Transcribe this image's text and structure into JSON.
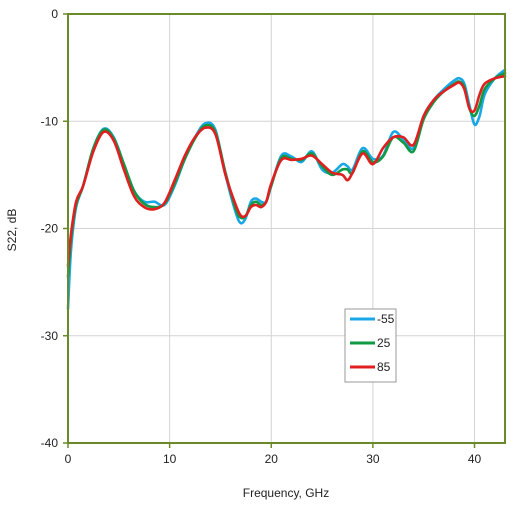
{
  "chart_data": {
    "type": "line",
    "title": "",
    "xlabel": "Frequency, GHz",
    "ylabel": "S22, dB",
    "xlim": [
      0,
      43
    ],
    "ylim": [
      -40,
      0
    ],
    "xticks": [
      0,
      10,
      20,
      30,
      40
    ],
    "yticks": [
      0,
      -10,
      -20,
      -30,
      -40
    ],
    "grid": true,
    "legend_position": "lower-right",
    "colors": {
      "axis": "#6a8a2a",
      "grid": "#d4d4d4"
    },
    "series": [
      {
        "name": "-55",
        "color": "#1aa7e8",
        "x": [
          0,
          0.3,
          0.8,
          1.5,
          2.5,
          3.5,
          4.5,
          5.5,
          6.5,
          7.5,
          8.5,
          9.5,
          10.5,
          11.5,
          12.5,
          13.5,
          14.5,
          15.5,
          16.5,
          17,
          17.5,
          18,
          18.5,
          19,
          19.5,
          20,
          21,
          22,
          23,
          24,
          25,
          26,
          27,
          27.5,
          28,
          29,
          30,
          31,
          32,
          33,
          34,
          35,
          36,
          37,
          38,
          38.5,
          39,
          39.5,
          40,
          40.5,
          41,
          42,
          43
        ],
        "y": [
          -27.5,
          -22,
          -18,
          -16,
          -12.5,
          -10.7,
          -11.5,
          -14,
          -16.5,
          -17.5,
          -17.5,
          -17.8,
          -16,
          -13.5,
          -11.5,
          -10.2,
          -10.8,
          -15,
          -18.5,
          -19.5,
          -19,
          -17.5,
          -17.2,
          -17.5,
          -17.5,
          -16,
          -13.2,
          -13.3,
          -13.8,
          -12.8,
          -14.5,
          -14.8,
          -14,
          -14.2,
          -14.5,
          -12.5,
          -13.5,
          -13.2,
          -11,
          -11.7,
          -12.5,
          -9.5,
          -8,
          -7,
          -6.2,
          -6,
          -6.5,
          -8.5,
          -10.3,
          -9.5,
          -7.5,
          -6,
          -5.2
        ]
      },
      {
        "name": "25",
        "color": "#119944",
        "x": [
          0,
          0.3,
          0.8,
          1.5,
          2.5,
          3.5,
          4.5,
          5.5,
          6.5,
          7.5,
          8.5,
          9.5,
          10.5,
          11.5,
          12.5,
          13.5,
          14.5,
          15.5,
          16.5,
          17,
          17.5,
          18,
          18.5,
          19,
          19.5,
          20,
          21,
          22,
          23,
          24,
          25,
          26,
          27,
          27.5,
          28,
          29,
          30,
          31,
          32,
          33,
          34,
          35,
          36,
          37,
          38,
          38.5,
          39,
          39.5,
          40,
          40.5,
          41,
          42,
          43
        ],
        "y": [
          -24.5,
          -21,
          -17.8,
          -16,
          -12.5,
          -10.8,
          -11.6,
          -14,
          -16.5,
          -17.7,
          -18,
          -17.7,
          -15.8,
          -13.5,
          -11.6,
          -10.4,
          -11,
          -14.8,
          -18.2,
          -19,
          -18.8,
          -17.8,
          -17.5,
          -17.8,
          -17.5,
          -16,
          -13.4,
          -13.5,
          -13.6,
          -13,
          -14.2,
          -15,
          -14.5,
          -14.5,
          -14.8,
          -12.8,
          -13.8,
          -13.3,
          -11.5,
          -12,
          -12.8,
          -9.8,
          -8.2,
          -7.2,
          -6.5,
          -6.3,
          -6.8,
          -8.8,
          -9.5,
          -8.5,
          -7,
          -6,
          -5.5
        ]
      },
      {
        "name": "85",
        "color": "#e02020",
        "x": [
          0,
          0.3,
          0.8,
          1.5,
          2.5,
          3.5,
          4.5,
          5.5,
          6.5,
          7.5,
          8.5,
          9.5,
          10.5,
          11.5,
          12.5,
          13.5,
          14.5,
          15.5,
          16.5,
          17,
          17.5,
          18,
          18.5,
          19,
          19.5,
          20,
          21,
          22,
          23,
          24,
          25,
          26,
          27,
          27.5,
          28,
          29,
          30,
          31,
          32,
          33,
          34,
          35,
          36,
          37,
          38,
          38.5,
          39,
          39.5,
          40,
          40.5,
          41,
          42,
          43
        ],
        "y": [
          -23.5,
          -20.5,
          -17.5,
          -16,
          -12.8,
          -11,
          -11.8,
          -14.5,
          -17,
          -18,
          -18.2,
          -17.6,
          -15.5,
          -13.2,
          -11.5,
          -10.6,
          -11.2,
          -15,
          -17.8,
          -18.8,
          -18.8,
          -18,
          -17.8,
          -18,
          -17.5,
          -15.8,
          -13.6,
          -13.6,
          -13.5,
          -13.2,
          -14,
          -14.8,
          -15,
          -15.5,
          -14.8,
          -13,
          -14,
          -12.5,
          -11.5,
          -11.5,
          -12.2,
          -9.5,
          -8,
          -7.2,
          -6.6,
          -6.4,
          -7,
          -8.8,
          -9,
          -7.5,
          -6.5,
          -6,
          -5.8
        ]
      }
    ]
  }
}
